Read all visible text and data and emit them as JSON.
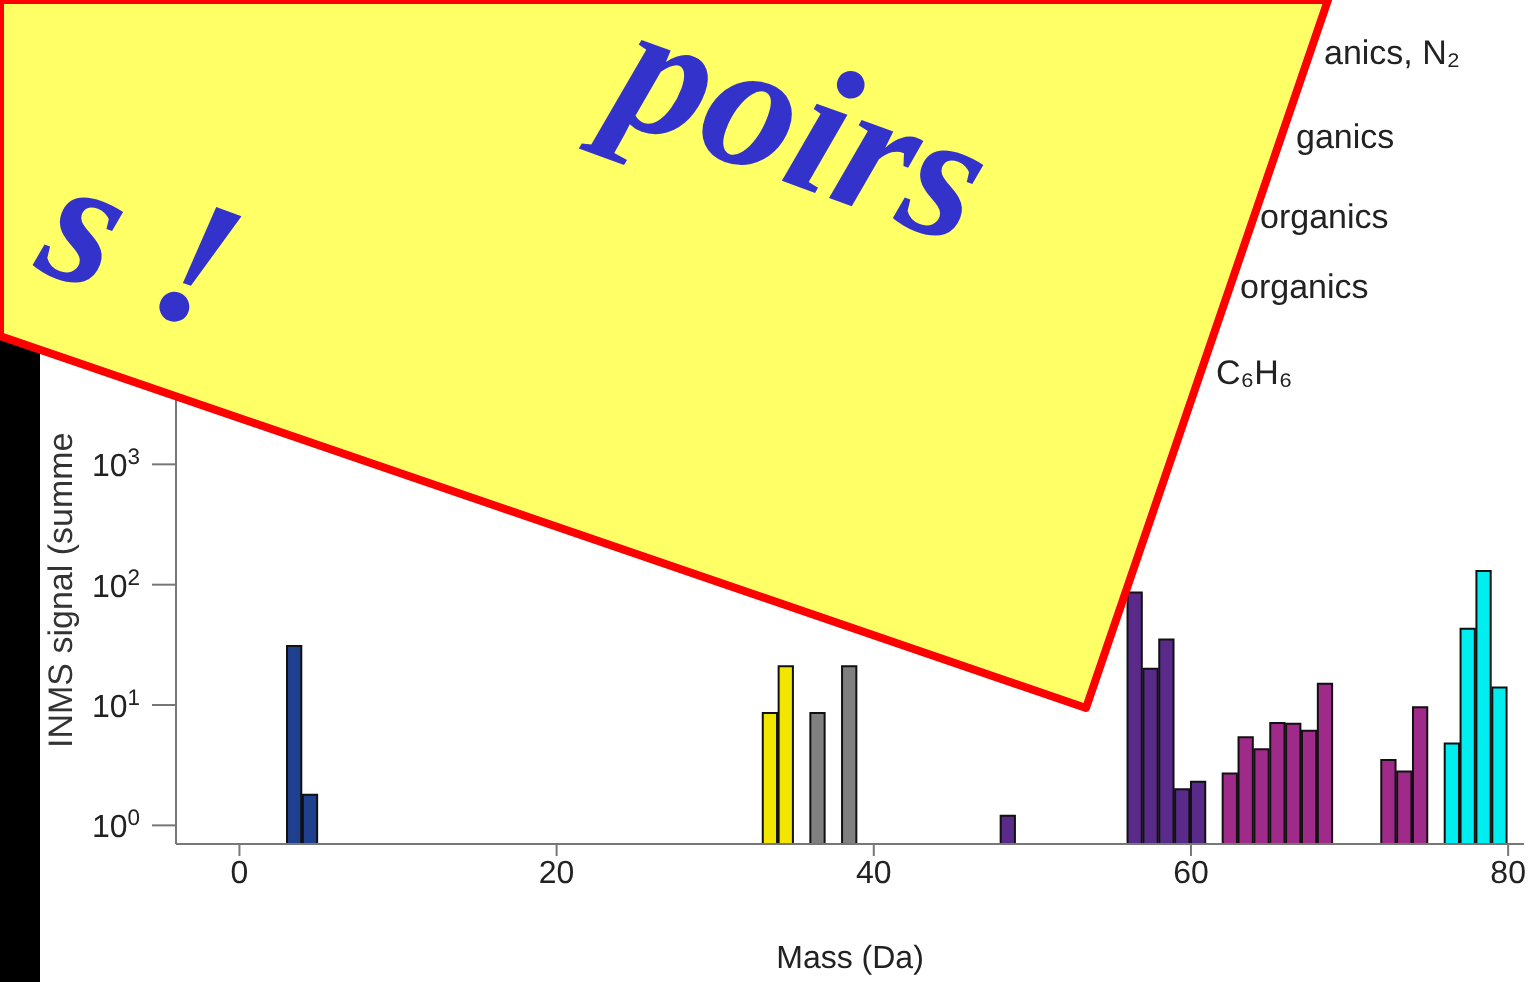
{
  "chart_data": {
    "type": "histogram",
    "xlabel": "Mass (Da)",
    "ylabel": "INMS signal (summe",
    "bins": [
      0,
      1,
      2,
      3,
      4,
      5,
      6,
      7,
      8,
      9,
      10,
      11,
      12,
      13,
      14,
      15,
      16,
      17,
      18,
      19,
      20,
      21,
      22,
      23,
      24,
      25,
      26,
      27,
      28,
      29,
      30,
      31,
      32,
      33,
      34,
      35,
      36,
      37,
      38,
      39,
      40,
      41,
      42,
      43,
      44,
      45,
      46,
      47,
      48,
      49,
      50,
      51,
      52,
      53,
      54,
      55,
      56,
      57,
      58,
      59,
      60,
      61,
      62,
      63,
      64,
      65,
      66,
      67,
      68,
      69,
      70,
      71,
      72,
      73,
      74,
      75,
      76,
      77,
      78,
      79,
      80
    ],
    "values": [
      null,
      null,
      null,
      31,
      1.8,
      null,
      null,
      null,
      null,
      null,
      null,
      null,
      null,
      null,
      null,
      null,
      null,
      null,
      null,
      null,
      null,
      null,
      null,
      null,
      null,
      null,
      null,
      null,
      null,
      null,
      null,
      null,
      null,
      8.6,
      21,
      null,
      8.6,
      null,
      21,
      null,
      null,
      null,
      null,
      null,
      null,
      null,
      null,
      null,
      1.2,
      null,
      null,
      null,
      null,
      null,
      null,
      null,
      86,
      20,
      35,
      2.0,
      2.3,
      null,
      2.7,
      5.4,
      4.3,
      7.1,
      7.0,
      6.1,
      15,
      null,
      null,
      null,
      3.5,
      2.8,
      9.6,
      null,
      4.8,
      43,
      130,
      14
    ],
    "colors": [
      null,
      null,
      null,
      "#1f3f8f",
      "#1f3f8f",
      null,
      null,
      null,
      null,
      null,
      null,
      null,
      null,
      null,
      null,
      null,
      null,
      null,
      null,
      null,
      null,
      null,
      null,
      null,
      null,
      null,
      null,
      null,
      null,
      null,
      null,
      null,
      null,
      "#f2e600",
      "#f2e600",
      null,
      "#808080",
      null,
      "#808080",
      null,
      null,
      null,
      null,
      null,
      null,
      null,
      null,
      null,
      "#5a2a8a",
      null,
      null,
      null,
      null,
      null,
      null,
      null,
      "#5a2a8a",
      "#5a2a8a",
      "#5a2a8a",
      "#5a2a8a",
      "#5a2a8a",
      null,
      "#a02a8a",
      "#a02a8a",
      "#a02a8a",
      "#a02a8a",
      "#a02a8a",
      "#a02a8a",
      "#a02a8a",
      null,
      null,
      null,
      "#a02a8a",
      "#a02a8a",
      "#a02a8a",
      null,
      "#00eef0",
      "#00eef0",
      "#00eef0",
      "#00eef0"
    ],
    "xlim": [
      -4,
      81
    ],
    "xticks": [
      0,
      20,
      40,
      60,
      80
    ],
    "log": "y",
    "ylim": [
      0.7,
      10000
    ],
    "yticks": [
      {
        "value": 1,
        "label": "10$^{0}$"
      },
      {
        "value": 10,
        "label": "10$^{1}$"
      },
      {
        "value": 100,
        "label": "10$^{2}$"
      },
      {
        "value": 1000,
        "label": "10$^{3}$"
      }
    ],
    "annotations": [
      "poirs",
      "s !",
      "anics, N₂",
      "ganics",
      "organics",
      "organics",
      "C₆H₆"
    ]
  }
}
